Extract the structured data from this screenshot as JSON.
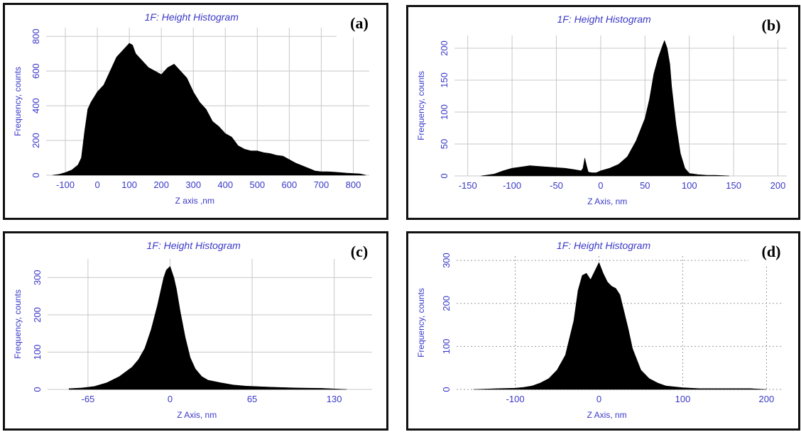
{
  "chart_data": [
    {
      "id": "a",
      "type": "area",
      "panel_label": "(a)",
      "title": "1F: Height Histogram",
      "xlabel": "Z axis ,nm",
      "ylabel": "Frequency, counts",
      "xlim": [
        -160,
        850
      ],
      "ylim": [
        0,
        850
      ],
      "xticks": [
        -100,
        0,
        100,
        200,
        300,
        400,
        500,
        600,
        700,
        800
      ],
      "yticks": [
        0,
        200,
        400,
        600,
        800
      ],
      "grid": true,
      "x": [
        -140,
        -120,
        -100,
        -80,
        -60,
        -50,
        -40,
        -30,
        -20,
        0,
        20,
        40,
        60,
        80,
        100,
        110,
        120,
        140,
        160,
        180,
        200,
        220,
        240,
        260,
        280,
        300,
        320,
        340,
        360,
        380,
        400,
        420,
        440,
        460,
        480,
        500,
        520,
        540,
        560,
        580,
        600,
        620,
        640,
        660,
        680,
        700,
        720,
        740,
        760,
        780,
        800,
        820,
        840
      ],
      "y": [
        0,
        5,
        15,
        30,
        60,
        100,
        250,
        380,
        420,
        480,
        520,
        600,
        680,
        720,
        760,
        750,
        700,
        660,
        620,
        600,
        580,
        620,
        640,
        600,
        560,
        480,
        420,
        380,
        310,
        280,
        240,
        220,
        170,
        150,
        140,
        140,
        130,
        125,
        115,
        110,
        90,
        70,
        55,
        40,
        25,
        20,
        20,
        18,
        15,
        12,
        10,
        8,
        0
      ]
    },
    {
      "id": "b",
      "type": "area",
      "panel_label": "(b)",
      "title": "1F: Height Histogram",
      "xlabel": "Z Axis, nm",
      "ylabel": "Frequency, counts",
      "xlim": [
        -165,
        210
      ],
      "ylim": [
        0,
        220
      ],
      "xticks": [
        -150,
        -100,
        -50,
        0,
        50,
        100,
        150,
        200
      ],
      "yticks": [
        0,
        50,
        100,
        150,
        200
      ],
      "grid": true,
      "x": [
        -135,
        -120,
        -110,
        -100,
        -90,
        -80,
        -70,
        -60,
        -50,
        -40,
        -30,
        -22,
        -20,
        -18,
        -16,
        -14,
        -10,
        -5,
        0,
        10,
        20,
        30,
        40,
        50,
        55,
        60,
        65,
        70,
        72,
        75,
        78,
        80,
        85,
        90,
        95,
        100,
        110,
        120,
        130,
        145
      ],
      "y": [
        0,
        3,
        8,
        12,
        14,
        16,
        15,
        14,
        13,
        12,
        10,
        8,
        12,
        28,
        16,
        6,
        5,
        5,
        8,
        12,
        18,
        30,
        55,
        90,
        120,
        160,
        185,
        205,
        212,
        200,
        175,
        140,
        80,
        35,
        12,
        4,
        2,
        1,
        1,
        0
      ]
    },
    {
      "id": "c",
      "type": "area",
      "panel_label": "(c)",
      "title": "1F: Height Histogram",
      "xlabel": "Z Axis, nm",
      "ylabel": "Frequency, counts",
      "xlim": [
        -97,
        160
      ],
      "ylim": [
        0,
        350
      ],
      "xticks": [
        -65,
        0,
        65,
        130
      ],
      "yticks": [
        0,
        100,
        200,
        300
      ],
      "grid": true,
      "x": [
        -80,
        -70,
        -60,
        -50,
        -40,
        -30,
        -25,
        -20,
        -15,
        -10,
        -7,
        -5,
        -3,
        0,
        3,
        5,
        8,
        12,
        16,
        20,
        25,
        30,
        40,
        50,
        60,
        80,
        100,
        120,
        140
      ],
      "y": [
        2,
        4,
        8,
        18,
        35,
        60,
        80,
        110,
        160,
        225,
        270,
        300,
        320,
        330,
        300,
        270,
        210,
        140,
        85,
        55,
        35,
        25,
        18,
        12,
        9,
        6,
        4,
        3,
        0
      ]
    },
    {
      "id": "d",
      "type": "area",
      "panel_label": "(d)",
      "title": "1F: Height Histogram",
      "xlabel": "Z Axis, nm",
      "ylabel": "Frequency, counts",
      "xlim": [
        -170,
        220
      ],
      "ylim": [
        0,
        310
      ],
      "xticks": [
        -100,
        0,
        100,
        200
      ],
      "yticks": [
        0,
        100,
        200,
        300
      ],
      "grid": true,
      "x": [
        -150,
        -120,
        -100,
        -90,
        -80,
        -70,
        -60,
        -50,
        -40,
        -30,
        -25,
        -20,
        -15,
        -10,
        -5,
        0,
        5,
        10,
        15,
        20,
        25,
        30,
        35,
        40,
        50,
        60,
        70,
        80,
        100,
        120,
        150,
        180,
        200
      ],
      "y": [
        0,
        2,
        3,
        5,
        8,
        15,
        25,
        45,
        80,
        160,
        230,
        265,
        270,
        255,
        275,
        295,
        270,
        250,
        240,
        235,
        220,
        180,
        140,
        95,
        45,
        25,
        15,
        8,
        4,
        2,
        2,
        2,
        0
      ]
    }
  ]
}
